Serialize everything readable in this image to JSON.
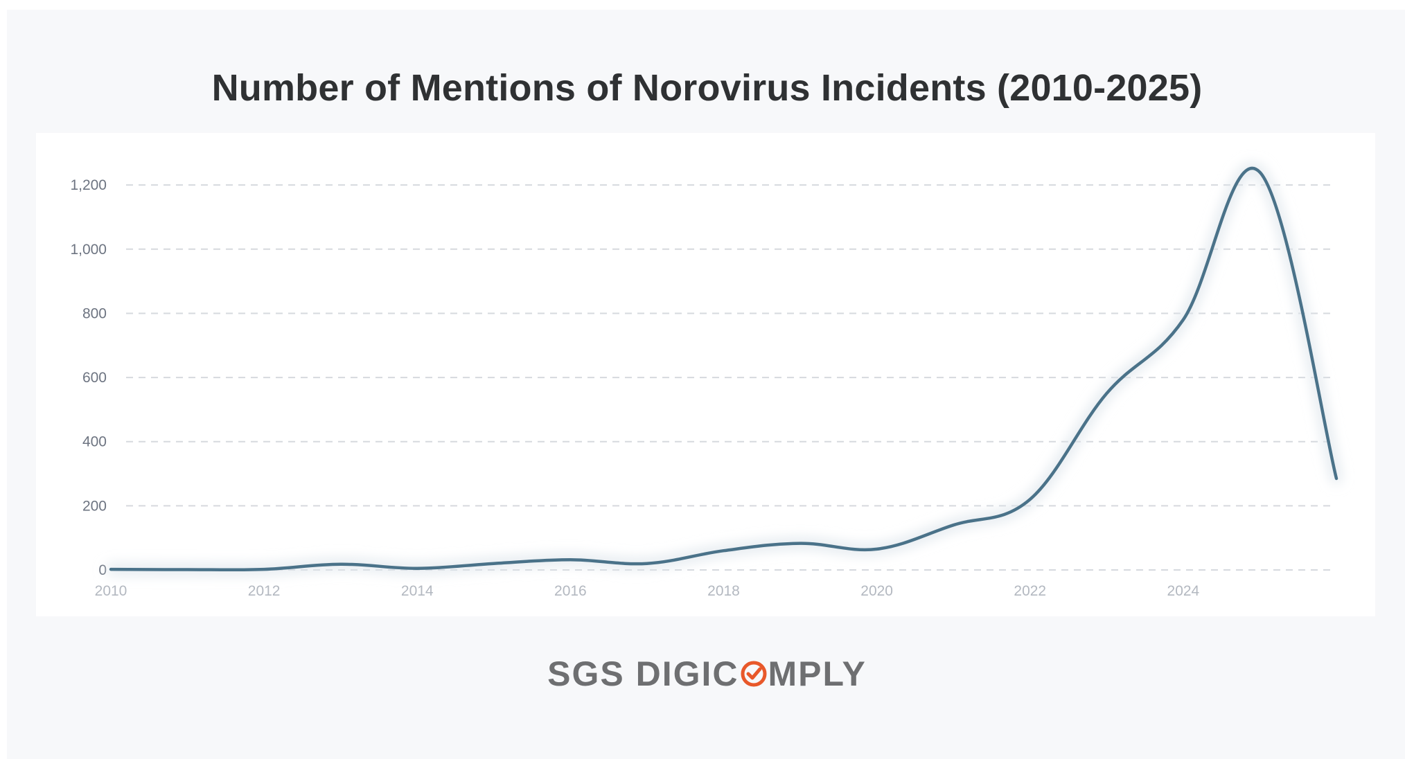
{
  "title": "Number of Mentions of Norovirus Incidents (2010-2025)",
  "logo": {
    "part1": "SGS DIGIC",
    "part2": "MPLY",
    "accent_color": "#e8582a"
  },
  "colors": {
    "line": "#4a7289",
    "grid": "#d6d9de",
    "background": "#f7f8fa",
    "plot_background": "#ffffff"
  },
  "chart_data": {
    "type": "line",
    "title": "Number of Mentions of Norovirus Incidents (2010-2025)",
    "xlabel": "",
    "ylabel": "",
    "x": [
      2010,
      2011,
      2012,
      2013,
      2014,
      2015,
      2016,
      2017,
      2018,
      2019,
      2020,
      2021,
      2022,
      2023,
      2024,
      2025,
      2026
    ],
    "values": [
      2,
      1,
      2,
      18,
      5,
      20,
      32,
      20,
      60,
      83,
      65,
      140,
      220,
      550,
      780,
      1240,
      285
    ],
    "xlim": [
      2010,
      2026
    ],
    "ylim": [
      0,
      1250
    ],
    "x_ticks": [
      "2010",
      "2012",
      "2014",
      "2016",
      "2018",
      "2020",
      "2022",
      "2024"
    ],
    "y_ticks": [
      "0",
      "200",
      "400",
      "600",
      "800",
      "1,000",
      "1,200"
    ],
    "grid": true,
    "grid_style": "dashed horizontal",
    "legend": "none"
  }
}
